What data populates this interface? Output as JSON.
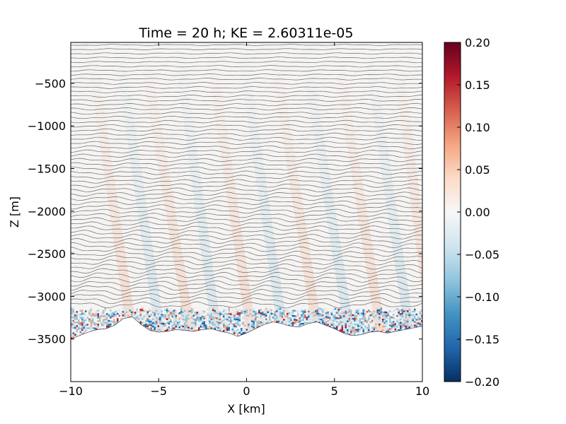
{
  "chart_data": {
    "type": "heatmap",
    "title": "Time = 20 h; KE = 2.60311e-05",
    "xlabel": "X [km]",
    "ylabel": "Z [m]",
    "xlim": [
      -10,
      10
    ],
    "ylim": [
      -4000,
      -20
    ],
    "x_ticks": [
      -10,
      -5,
      0,
      5,
      10
    ],
    "x_tick_labels": [
      "−10",
      "−5",
      "0",
      "5",
      "10"
    ],
    "y_ticks": [
      -3500,
      -3000,
      -2500,
      -2000,
      -1500,
      -1000,
      -500
    ],
    "y_tick_labels": [
      "−3500",
      "−3000",
      "−2500",
      "−2000",
      "−1500",
      "−1000",
      "−500"
    ],
    "colormap": "RdBu_r",
    "colorbar": {
      "vmin": -0.2,
      "vmax": 0.2,
      "ticks": [
        0.2,
        0.15,
        0.1,
        0.05,
        0.0,
        -0.05,
        -0.1,
        -0.15,
        -0.2
      ],
      "tick_labels": [
        "0.20",
        "0.15",
        "0.10",
        "0.05",
        "0.00",
        "−0.05",
        "−0.10",
        "−0.15",
        "−0.20"
      ],
      "colors": [
        "#053061",
        "#2166ac",
        "#4393c3",
        "#92c5de",
        "#d1e5f0",
        "#f7f7f7",
        "#fddbc7",
        "#f4a582",
        "#d6604d",
        "#b2182b",
        "#67001f"
      ]
    },
    "bathymetry": {
      "x": [
        -10,
        -9.5,
        -9,
        -8.5,
        -8,
        -7.5,
        -7,
        -6.5,
        -6,
        -5.5,
        -5,
        -4.5,
        -4,
        -3.5,
        -3,
        -2.5,
        -2,
        -1.5,
        -1,
        -0.5,
        0,
        0.5,
        1,
        1.5,
        2,
        2.5,
        3,
        3.5,
        4,
        4.5,
        5,
        5.5,
        6,
        6.5,
        7,
        7.5,
        8,
        8.5,
        9,
        9.5,
        10
      ],
      "z": [
        -3500,
        -3460,
        -3420,
        -3390,
        -3380,
        -3340,
        -3260,
        -3240,
        -3330,
        -3400,
        -3420,
        -3410,
        -3390,
        -3400,
        -3410,
        -3390,
        -3380,
        -3410,
        -3430,
        -3470,
        -3430,
        -3380,
        -3330,
        -3300,
        -3320,
        -3350,
        -3360,
        -3320,
        -3300,
        -3340,
        -3380,
        -3430,
        -3460,
        -3450,
        -3420,
        -3410,
        -3430,
        -3410,
        -3390,
        -3370,
        -3350
      ]
    },
    "isopycnal_depths": [
      -50,
      -100,
      -150,
      -200,
      -250,
      -300,
      -350,
      -400,
      -450,
      -500,
      -550,
      -600,
      -650,
      -700,
      -750,
      -800,
      -850,
      -900,
      -950,
      -1000,
      -1050,
      -1100,
      -1150,
      -1200,
      -1250,
      -1300,
      -1350,
      -1400,
      -1450,
      -1500,
      -1550,
      -1600,
      -1650,
      -1700,
      -1750,
      -1800,
      -1850,
      -1900,
      -1950,
      -2000,
      -2050,
      -2100,
      -2150,
      -2200,
      -2250,
      -2300,
      -2350,
      -2400,
      -2450,
      -2500,
      -2550,
      -2600,
      -2650,
      -2700,
      -2750,
      -2800,
      -2850,
      -2900,
      -2950,
      -3000,
      -3050,
      -3100
    ]
  }
}
